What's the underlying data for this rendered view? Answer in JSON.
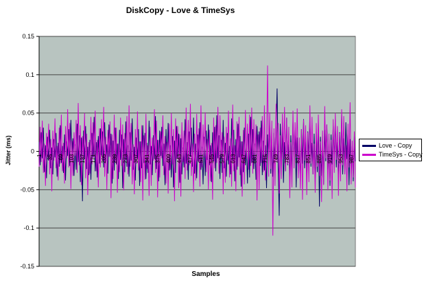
{
  "window": {
    "background": "#ffffff"
  },
  "chart_data": {
    "type": "line",
    "title": "DiskCopy - Love & TimeSys",
    "xlabel": "Samples",
    "ylabel": "Jitter (ms)",
    "ylim": [
      -0.15,
      0.15
    ],
    "ytick_labels": [
      "0.15",
      "0.1",
      "0.05",
      "0",
      "-0.05",
      "-0.1",
      "-0.15"
    ],
    "xtick_labels": [
      "1",
      "35",
      "69",
      "103",
      "137",
      "171",
      "205",
      "239",
      "273",
      "307",
      "341",
      "375",
      "409",
      "443",
      "477",
      "511",
      "545",
      "579",
      "613",
      "647",
      "681",
      "715",
      "749",
      "783",
      "817",
      "851",
      "885",
      "919",
      "953",
      "987"
    ],
    "x_last_category": 1000,
    "grid": "horizontal",
    "plot_background": "#b8c4c0",
    "gridline_color": "#444444",
    "plot_border_color": "#777777",
    "axis_color": "#000000",
    "legend_position": "right",
    "legend_background": "#ffffff",
    "legend_border": "#000000",
    "series": [
      {
        "name": "Love - Copy",
        "color": "#000066",
        "values": [
          0.012,
          -0.018,
          0.025,
          -0.009,
          0.031,
          -0.027,
          0.008,
          -0.035,
          0.019,
          -0.012,
          0.028,
          -0.022,
          0.005,
          -0.03,
          0.016,
          -0.008,
          0.024,
          -0.033,
          0.011,
          -0.02,
          0.034,
          -0.015,
          0.007,
          -0.028,
          0.022,
          -0.038,
          0.013,
          -0.006,
          0.029,
          -0.019,
          0.041,
          -0.011,
          0.017,
          -0.032,
          0.009,
          -0.024,
          0.036,
          -0.014,
          0.021,
          -0.04,
          0.018,
          -0.065,
          0.027,
          -0.01,
          0.033,
          -0.023,
          0.006,
          -0.031,
          0.015,
          -0.037,
          0.024,
          -0.008,
          0.045,
          -0.026,
          0.012,
          -0.034,
          0.02,
          -0.016,
          0.03,
          -0.005,
          0.026,
          -0.021,
          0.038,
          -0.013,
          0.009,
          -0.029,
          0.035,
          -0.007,
          0.023,
          -0.042,
          0.014,
          -0.025,
          0.031,
          -0.017,
          0.01,
          -0.036,
          0.028,
          -0.011,
          0.022,
          -0.048,
          0.016,
          -0.027,
          0.039,
          -0.02,
          0.008,
          -0.033,
          0.025,
          -0.012,
          0.043,
          -0.024,
          0.006,
          -0.038,
          0.018,
          -0.009,
          0.029,
          -0.045,
          0.013,
          -0.022,
          0.034,
          -0.015,
          0.024,
          -0.036,
          0.011,
          -0.028,
          0.04,
          -0.017,
          0.007,
          -0.031,
          0.021,
          -0.01,
          0.046,
          -0.023,
          0.015,
          -0.039,
          0.027,
          -0.006,
          0.032,
          -0.019,
          0.01,
          -0.044,
          0.029,
          -0.013,
          0.037,
          -0.025,
          0.008,
          -0.034,
          0.02,
          -0.047,
          0.014,
          -0.028,
          0.033,
          -0.009,
          0.023,
          -0.041,
          0.017,
          -0.03,
          0.005,
          -0.021,
          0.042,
          -0.016,
          0.012,
          -0.037,
          0.026,
          -0.007,
          0.031,
          -0.02,
          0.044,
          -0.029,
          0.01,
          -0.035,
          0.022,
          -0.014,
          0.038,
          -0.024,
          0.006,
          -0.043,
          0.019,
          -0.032,
          0.027,
          -0.011,
          0.035,
          -0.018,
          0.008,
          -0.04,
          0.025,
          -0.013,
          0.032,
          -0.026,
          0.047,
          -0.009,
          0.021,
          -0.036,
          0.015,
          -0.028,
          0.041,
          -0.022,
          0.011,
          -0.033,
          0.024,
          -0.017,
          0.007,
          -0.03,
          0.043,
          -0.012,
          0.028,
          -0.039,
          0.016,
          -0.024,
          0.036,
          -0.008,
          0.02,
          -0.046,
          0.013,
          -0.027,
          0.031,
          -0.018,
          0.009,
          -0.042,
          0.023,
          -0.034,
          0.045,
          -0.015,
          0.029,
          -0.023,
          0.01,
          -0.037,
          0.033,
          -0.006,
          0.026,
          -0.019,
          0.04,
          -0.031,
          0.014,
          -0.025,
          0.008,
          -0.048,
          0.022,
          -0.012,
          0.038,
          -0.029,
          0.017,
          -0.033,
          0.024,
          -0.01,
          0.03,
          0.082,
          -0.02,
          -0.084,
          0.036,
          -0.015,
          0.027,
          -0.041,
          0.012,
          -0.026,
          0.044,
          -0.018,
          0.009,
          -0.035,
          0.021,
          -0.028,
          0.039,
          -0.012,
          0.031,
          -0.047,
          0.018,
          -0.025,
          0.007,
          -0.038,
          0.029,
          -0.016,
          0.042,
          -0.022,
          0.013,
          -0.034,
          0.026,
          -0.008,
          0.046,
          -0.02,
          0.011,
          -0.03,
          0.023,
          -0.04,
          0.015,
          -0.027,
          0.037,
          -0.072,
          0.019,
          -0.032,
          0.006,
          -0.043,
          0.028,
          -0.013,
          0.035,
          -0.024,
          0.01,
          -0.045,
          0.022,
          -0.017,
          0.033,
          -0.009,
          0.041,
          -0.021,
          0.012,
          -0.036,
          0.025,
          -0.014,
          0.048,
          -0.03,
          0.017,
          -0.023,
          0.038,
          -0.01,
          0.028,
          -0.044,
          0.016,
          -0.029,
          0.007,
          -0.039,
          0.02,
          -0.013
        ]
      },
      {
        "name": "TimeSys - Copy",
        "color": "#cc00cc",
        "values": [
          -0.02,
          0.032,
          -0.014,
          0.04,
          -0.028,
          0.01,
          -0.045,
          0.024,
          -0.008,
          0.036,
          -0.03,
          0.016,
          -0.052,
          0.027,
          -0.012,
          0.043,
          -0.022,
          0.007,
          -0.038,
          0.031,
          -0.016,
          0.048,
          -0.026,
          0.011,
          -0.042,
          0.033,
          -0.009,
          0.055,
          -0.021,
          0.037,
          -0.049,
          0.014,
          -0.032,
          0.025,
          -0.006,
          0.041,
          -0.028,
          0.063,
          -0.018,
          0.034,
          -0.044,
          0.02,
          -0.01,
          0.05,
          -0.035,
          0.023,
          -0.057,
          0.012,
          -0.029,
          0.045,
          -0.017,
          0.038,
          -0.008,
          0.053,
          -0.026,
          0.015,
          -0.047,
          0.03,
          -0.021,
          0.042,
          -0.013,
          0.058,
          -0.033,
          0.019,
          -0.05,
          0.028,
          -0.007,
          0.039,
          -0.061,
          0.022,
          -0.036,
          0.048,
          -0.015,
          0.031,
          -0.054,
          0.01,
          -0.027,
          0.044,
          -0.019,
          0.035,
          -0.051,
          0.024,
          -0.011,
          0.046,
          -0.03,
          0.06,
          -0.02,
          0.037,
          -0.043,
          0.009,
          -0.056,
          0.029,
          -0.016,
          0.052,
          -0.025,
          0.013,
          -0.04,
          0.034,
          -0.064,
          0.021,
          -0.037,
          0.049,
          -0.023,
          0.008,
          -0.058,
          0.032,
          -0.045,
          0.018,
          -0.012,
          0.055,
          -0.028,
          0.04,
          -0.06,
          0.015,
          -0.034,
          0.026,
          -0.009,
          0.047,
          -0.031,
          0.02,
          -0.042,
          0.012,
          -0.055,
          0.036,
          -0.024,
          0.05,
          -0.017,
          0.029,
          -0.065,
          0.043,
          -0.01,
          0.033,
          -0.048,
          0.022,
          -0.059,
          0.038,
          -0.014,
          0.027,
          -0.036,
          0.057,
          -0.025,
          0.041,
          -0.018,
          0.062,
          -0.032,
          0.01,
          -0.053,
          0.023,
          -0.038,
          0.049,
          -0.013,
          0.03,
          -0.046,
          0.06,
          -0.021,
          0.035,
          -0.008,
          0.051,
          -0.027,
          0.016,
          -0.05,
          0.028,
          -0.039,
          0.011,
          -0.063,
          0.044,
          -0.022,
          0.034,
          -0.015,
          0.058,
          -0.029,
          0.047,
          -0.009,
          0.025,
          -0.056,
          0.019,
          -0.041,
          0.032,
          -0.012,
          0.053,
          -0.034,
          0.017,
          -0.046,
          0.061,
          -0.026,
          0.008,
          -0.052,
          0.039,
          -0.02,
          0.045,
          -0.031,
          0.013,
          -0.059,
          0.028,
          -0.043,
          0.054,
          -0.01,
          0.036,
          -0.024,
          0.048,
          -0.019,
          0.057,
          -0.029,
          0.042,
          -0.011,
          0.035,
          -0.064,
          0.022,
          -0.05,
          0.031,
          -0.015,
          0.046,
          -0.027,
          0.06,
          -0.038,
          0.009,
          0.112,
          -0.033,
          0.051,
          -0.023,
          0.04,
          -0.11,
          0.03,
          -0.045,
          0.062,
          -0.014,
          0.037,
          -0.055,
          0.021,
          -0.036,
          0.049,
          -0.01,
          0.058,
          -0.026,
          0.044,
          -0.017,
          0.032,
          -0.061,
          0.012,
          -0.047,
          0.053,
          -0.022,
          0.038,
          -0.008,
          0.056,
          -0.035,
          0.018,
          -0.049,
          0.029,
          -0.063,
          0.041,
          -0.012,
          0.034,
          -0.057,
          0.025,
          -0.04,
          0.06,
          -0.016,
          0.045,
          -0.03,
          0.01,
          -0.054,
          0.037,
          -0.02,
          0.048,
          -0.032,
          0.013,
          -0.066,
          0.027,
          -0.044,
          0.059,
          -0.009,
          0.035,
          -0.051,
          0.023,
          -0.038,
          0.015,
          -0.062,
          0.042,
          -0.028,
          0.05,
          -0.011,
          0.033,
          -0.058,
          0.024,
          -0.039,
          0.055,
          -0.018,
          0.046,
          -0.03,
          0.008,
          -0.052,
          0.036,
          -0.021,
          0.064,
          -0.043,
          0.014,
          -0.034,
          0.026,
          -0.047
        ]
      }
    ]
  }
}
